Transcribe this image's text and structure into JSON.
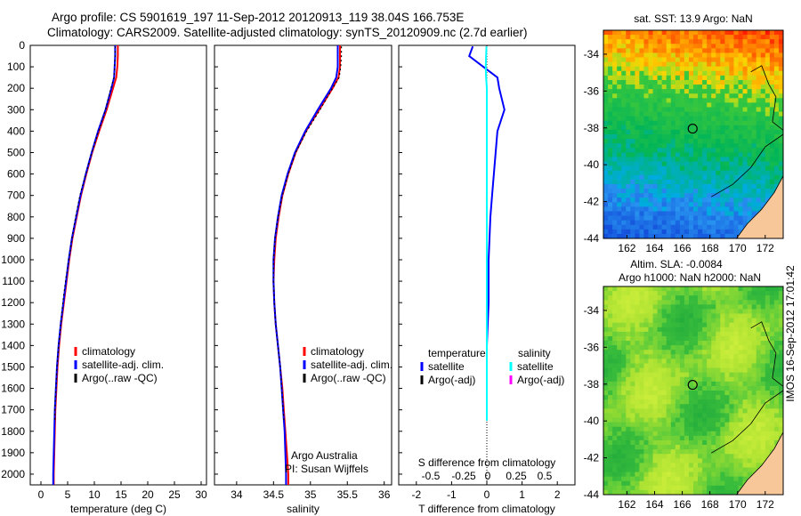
{
  "header": {
    "line1": "Argo profile: CS 5901619_197 11-Sep-2012 20120913_119 38.04S 166.753E",
    "line2": "Climatology: CARS2009. Satellite-adjusted climatology: synTS_20120909.nc (2.7d earlier)"
  },
  "stamp": "IMOS 16-Sep-2012 17:01:42",
  "colors": {
    "climatology": "#ff0000",
    "satellite": "#0000ff",
    "argo": "#000000",
    "satellite_s": "#00ffff",
    "argo_s": "#ff00ff",
    "land": "#f7c79a"
  },
  "chart_data": [
    {
      "type": "line",
      "name": "temperature",
      "xlabel": "temperature (deg C)",
      "ylabel": "",
      "xlim": [
        -2,
        31
      ],
      "ylim": [
        0,
        2050
      ],
      "xticks": [
        0,
        5,
        10,
        15,
        20,
        25,
        30
      ],
      "yticks": [
        0,
        100,
        200,
        300,
        400,
        500,
        600,
        700,
        800,
        900,
        1000,
        1100,
        1200,
        1300,
        1400,
        1500,
        1600,
        1700,
        1800,
        1900,
        2000
      ],
      "legend": [
        "climatology",
        "satellite-adj. clim.",
        "Argo(..raw -QC)"
      ],
      "series": [
        {
          "name": "climatology",
          "depth": [
            0,
            50,
            100,
            150,
            200,
            300,
            400,
            500,
            600,
            700,
            800,
            900,
            1000,
            1100,
            1200,
            1300,
            1400,
            1500,
            1600,
            1700,
            1800,
            1900,
            2000,
            2050
          ],
          "values": [
            14.4,
            14.4,
            14.3,
            14.1,
            13.5,
            12.3,
            10.9,
            9.6,
            8.5,
            7.5,
            6.7,
            5.9,
            5.3,
            4.8,
            4.3,
            3.8,
            3.4,
            3.1,
            2.9,
            2.7,
            2.6,
            2.5,
            2.4,
            2.4
          ]
        },
        {
          "name": "satellite-adj. clim.",
          "depth": [
            0,
            50,
            100,
            150,
            200,
            300,
            400,
            500,
            600,
            700,
            800,
            900,
            1000,
            1100,
            1200,
            1300,
            1400,
            1500,
            1600,
            1700,
            1800,
            1900,
            2000,
            2050
          ],
          "values": [
            13.9,
            13.9,
            13.8,
            13.7,
            13.2,
            12.1,
            10.7,
            9.5,
            8.4,
            7.4,
            6.6,
            5.8,
            5.2,
            4.7,
            4.2,
            3.7,
            3.3,
            3.0,
            2.8,
            2.6,
            2.5,
            2.4,
            2.3,
            2.3
          ]
        },
        {
          "name": "Argo(..raw -QC)",
          "depth": [
            5,
            50,
            100,
            150,
            200,
            300,
            400,
            500,
            600,
            700,
            800,
            900,
            1000,
            1100,
            1200,
            1300,
            1400,
            1500,
            1600,
            1700,
            1750
          ],
          "values": [
            13.9,
            13.9,
            13.8,
            13.7,
            13.1,
            12.1,
            10.8,
            9.5,
            8.4,
            7.3,
            6.5,
            5.8,
            5.2,
            4.6,
            4.1,
            3.7,
            3.3,
            3.0,
            2.8,
            2.6,
            2.6
          ]
        }
      ]
    },
    {
      "type": "line",
      "name": "salinity",
      "xlabel": "salinity",
      "xlim": [
        33.7,
        36.1
      ],
      "ylim": [
        0,
        2050
      ],
      "xticks": [
        34,
        34.5,
        35,
        35.5,
        36
      ],
      "legend": [
        "climatology",
        "satellite-adj. clim.",
        "Argo(..raw -QC)"
      ],
      "series": [
        {
          "name": "climatology",
          "depth": [
            0,
            50,
            100,
            150,
            200,
            300,
            400,
            500,
            600,
            700,
            800,
            900,
            1000,
            1100,
            1200,
            1300,
            1400,
            1500,
            1600,
            1700,
            1800,
            1900,
            2000,
            2050
          ],
          "values": [
            35.4,
            35.4,
            35.4,
            35.38,
            35.3,
            35.12,
            34.94,
            34.8,
            34.7,
            34.62,
            34.57,
            34.53,
            34.51,
            34.5,
            34.51,
            34.53,
            34.56,
            34.59,
            34.62,
            34.64,
            34.66,
            34.68,
            34.7,
            34.7
          ]
        },
        {
          "name": "satellite-adj. clim.",
          "depth": [
            0,
            50,
            100,
            150,
            200,
            300,
            400,
            500,
            600,
            700,
            800,
            900,
            1000,
            1100,
            1200,
            1300,
            1400,
            1500,
            1600,
            1700,
            1800,
            1900,
            2000,
            2050
          ],
          "values": [
            35.37,
            35.37,
            35.37,
            35.35,
            35.28,
            35.1,
            34.93,
            34.79,
            34.69,
            34.61,
            34.56,
            34.52,
            34.5,
            34.5,
            34.51,
            34.53,
            34.56,
            34.59,
            34.61,
            34.63,
            34.65,
            34.66,
            34.67,
            34.67
          ]
        },
        {
          "name": "Argo(..raw -QC)",
          "depth": [
            5,
            50,
            100,
            150,
            200,
            300,
            400,
            500,
            600,
            700,
            800,
            900,
            1000,
            1100,
            1200,
            1300,
            1400,
            1500,
            1600,
            1700,
            1750
          ],
          "values": [
            35.42,
            35.42,
            35.41,
            35.39,
            35.3,
            35.13,
            34.95,
            34.8,
            34.7,
            34.62,
            34.56,
            34.52,
            34.5,
            34.5,
            34.51,
            34.53,
            34.56,
            34.59,
            34.61,
            34.63,
            34.64
          ]
        }
      ],
      "annotation": [
        "Argo Australia",
        "PI: Susan Wijffels"
      ]
    },
    {
      "type": "line",
      "name": "difference",
      "xlabel": "T difference from climatology",
      "xlabel_top": "S difference from climatology",
      "xlim": [
        -2.5,
        2.5
      ],
      "ylim": [
        0,
        2050
      ],
      "xticks": [
        -2,
        -1,
        0,
        1,
        2
      ],
      "s_ticks": [
        "-0.5",
        "-0.25",
        "0",
        "0.25",
        "0.5"
      ],
      "legend_headers": [
        "temperature",
        "salinity"
      ],
      "legend": [
        "satellite",
        "Argo(-adj)",
        "satellite",
        "Argo(-adj)"
      ],
      "series": [
        {
          "name": "temperature satellite",
          "depth": [
            5,
            50,
            100,
            150,
            200,
            300,
            400,
            500,
            600,
            700,
            800,
            1000,
            1200,
            1400,
            1600,
            1750
          ],
          "values": [
            -0.4,
            -0.5,
            -0.1,
            0.3,
            0.35,
            0.5,
            0.3,
            0.25,
            0.2,
            0.15,
            0.1,
            0.05,
            0.05,
            0.0,
            0.0,
            0.0
          ]
        },
        {
          "name": "salinity satellite",
          "depth": [
            5,
            50,
            100,
            150,
            200,
            300,
            400,
            500,
            600,
            700,
            800,
            1000,
            1200,
            1400,
            1600,
            1750
          ],
          "values": [
            -0.01,
            -0.02,
            -0.03,
            -0.02,
            0.0,
            0.0,
            0.0,
            0.0,
            0.0,
            0.0,
            0.0,
            0.0,
            0.0,
            0.0,
            0.0,
            0.0
          ]
        }
      ]
    },
    {
      "type": "heatmap",
      "name": "sst-map",
      "title": "sat. SST: 13.9 Argo: NaN",
      "xticks": [
        162,
        164,
        166,
        168,
        170,
        172
      ],
      "yticks": [
        -34,
        -36,
        -38,
        -40,
        -42,
        -44
      ],
      "xlim": [
        160.3,
        173.3
      ],
      "ylim": [
        -44,
        -32.7
      ],
      "marker": {
        "lon": 166.753,
        "lat": -38.04
      }
    },
    {
      "type": "heatmap",
      "name": "sla-map",
      "title": "Altim. SLA: -0.0084",
      "subtitle": "Argo h1000: NaN h2000: NaN",
      "xticks": [
        162,
        164,
        166,
        168,
        170,
        172
      ],
      "yticks": [
        -34,
        -36,
        -38,
        -40,
        -42,
        -44
      ],
      "xlim": [
        160.3,
        173.3
      ],
      "ylim": [
        -44,
        -32.7
      ],
      "marker": {
        "lon": 166.753,
        "lat": -38.04
      }
    }
  ]
}
